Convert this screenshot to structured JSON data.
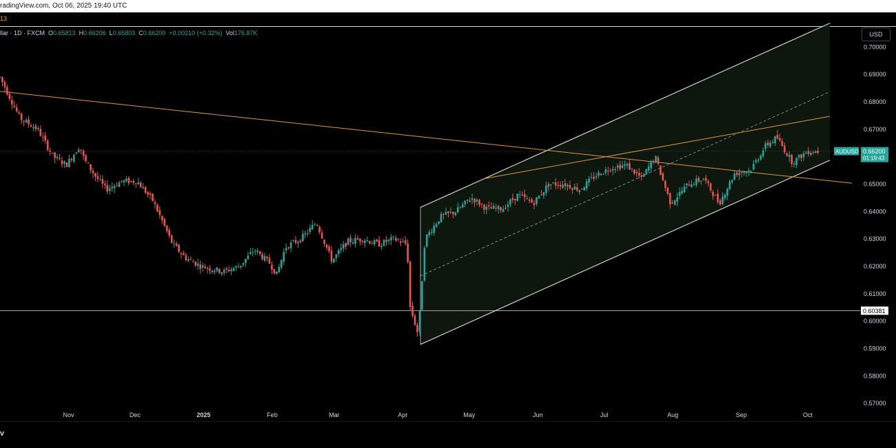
{
  "header": {
    "source": "radingView.com, Oct 06, 2025 19:40 UTC",
    "indicator_label": "13"
  },
  "legend": {
    "symbol": "llar · 1D · FXCM",
    "o_label": "O",
    "o_value": "0.65813",
    "h_label": "H",
    "h_value": "0.66206",
    "l_label": "L",
    "l_value": "0.65803",
    "c_label": "C",
    "c_value": "0.66200",
    "change": "+0.00210 (+0.32%)",
    "vol_label": "Vol",
    "vol_value": "176.87K"
  },
  "currency_button": "USD",
  "footer_glyph": "v",
  "colors": {
    "up": "#26a69a",
    "down": "#ef5350",
    "channel": "#d0d0d0",
    "trendline": "#e0983a",
    "channel_fill": "#0e1a10"
  },
  "chart_data": {
    "type": "candlestick",
    "symbol": "AUDUSD",
    "timeframe": "1D",
    "ylim": [
      0.5635,
      0.7076
    ],
    "y_ticks": [
      "0.57000",
      "0.58000",
      "0.59000",
      "0.60000",
      "0.61000",
      "0.62000",
      "0.63000",
      "0.64000",
      "0.65000",
      "0.66000",
      "0.67000",
      "0.68000",
      "0.69000",
      "0.70000"
    ],
    "x_ticks": [
      "Nov",
      "Dec",
      "2025",
      "Feb",
      "Mar",
      "Apr",
      "May",
      "Jun",
      "Jul",
      "Aug",
      "Sep",
      "Oct"
    ],
    "last_price": {
      "label": "AUDUSD",
      "price": "0.66200",
      "countdown": "01:19:43",
      "value": 0.662
    },
    "horizontal_level": {
      "label": "0.60381",
      "value": 0.60381
    },
    "price_path": [
      [
        "2024-10-01",
        0.689
      ],
      [
        "2024-10-10",
        0.674
      ],
      [
        "2024-10-18",
        0.67
      ],
      [
        "2024-10-25",
        0.66
      ],
      [
        "2024-10-31",
        0.657
      ],
      [
        "2024-11-06",
        0.664
      ],
      [
        "2024-11-08",
        0.659
      ],
      [
        "2024-11-13",
        0.653
      ],
      [
        "2024-11-18",
        0.648
      ],
      [
        "2024-11-25",
        0.651
      ],
      [
        "2024-12-02",
        0.651
      ],
      [
        "2024-12-09",
        0.644
      ],
      [
        "2024-12-13",
        0.637
      ],
      [
        "2024-12-18",
        0.628
      ],
      [
        "2024-12-24",
        0.623
      ],
      [
        "2024-12-31",
        0.62
      ],
      [
        "2025-01-10",
        0.618
      ],
      [
        "2025-01-17",
        0.62
      ],
      [
        "2025-01-24",
        0.626
      ],
      [
        "2025-01-31",
        0.621
      ],
      [
        "2025-02-03",
        0.617
      ],
      [
        "2025-02-07",
        0.627
      ],
      [
        "2025-02-14",
        0.63
      ],
      [
        "2025-02-21",
        0.636
      ],
      [
        "2025-02-28",
        0.622
      ],
      [
        "2025-03-07",
        0.629
      ],
      [
        "2025-03-14",
        0.63
      ],
      [
        "2025-03-21",
        0.628
      ],
      [
        "2025-03-28",
        0.63
      ],
      [
        "2025-04-03",
        0.628
      ],
      [
        "2025-04-04",
        0.606
      ],
      [
        "2025-04-08",
        0.595
      ],
      [
        "2025-04-11",
        0.63
      ],
      [
        "2025-04-18",
        0.638
      ],
      [
        "2025-04-25",
        0.64
      ],
      [
        "2025-05-02",
        0.645
      ],
      [
        "2025-05-09",
        0.641
      ],
      [
        "2025-05-16",
        0.641
      ],
      [
        "2025-05-23",
        0.646
      ],
      [
        "2025-05-30",
        0.643
      ],
      [
        "2025-06-06",
        0.65
      ],
      [
        "2025-06-13",
        0.65
      ],
      [
        "2025-06-20",
        0.648
      ],
      [
        "2025-06-27",
        0.653
      ],
      [
        "2025-07-04",
        0.656
      ],
      [
        "2025-07-11",
        0.657
      ],
      [
        "2025-07-18",
        0.652
      ],
      [
        "2025-07-24",
        0.66
      ],
      [
        "2025-07-31",
        0.643
      ],
      [
        "2025-08-08",
        0.65
      ],
      [
        "2025-08-15",
        0.652
      ],
      [
        "2025-08-22",
        0.643
      ],
      [
        "2025-08-29",
        0.654
      ],
      [
        "2025-09-05",
        0.655
      ],
      [
        "2025-09-12",
        0.664
      ],
      [
        "2025-09-17",
        0.667
      ],
      [
        "2025-09-24",
        0.658
      ],
      [
        "2025-10-01",
        0.662
      ],
      [
        "2025-10-06",
        0.662
      ]
    ],
    "channel": {
      "lower": [
        [
          "2025-04-09",
          0.5915
        ],
        [
          "2025-10-11",
          0.6587
        ]
      ],
      "upper": [
        [
          "2025-04-09",
          0.6415
        ],
        [
          "2025-10-11",
          0.7087
        ]
      ],
      "median": [
        [
          "2025-04-09",
          0.6165
        ],
        [
          "2025-10-11",
          0.6837
        ]
      ]
    },
    "trendlines": [
      {
        "from": [
          "2024-10-01",
          0.6838
        ],
        "to": [
          "2025-10-21",
          0.6503
        ]
      },
      {
        "from": [
          "2025-05-08",
          0.652
        ],
        "to": [
          "2025-10-11",
          0.6747
        ]
      }
    ]
  }
}
